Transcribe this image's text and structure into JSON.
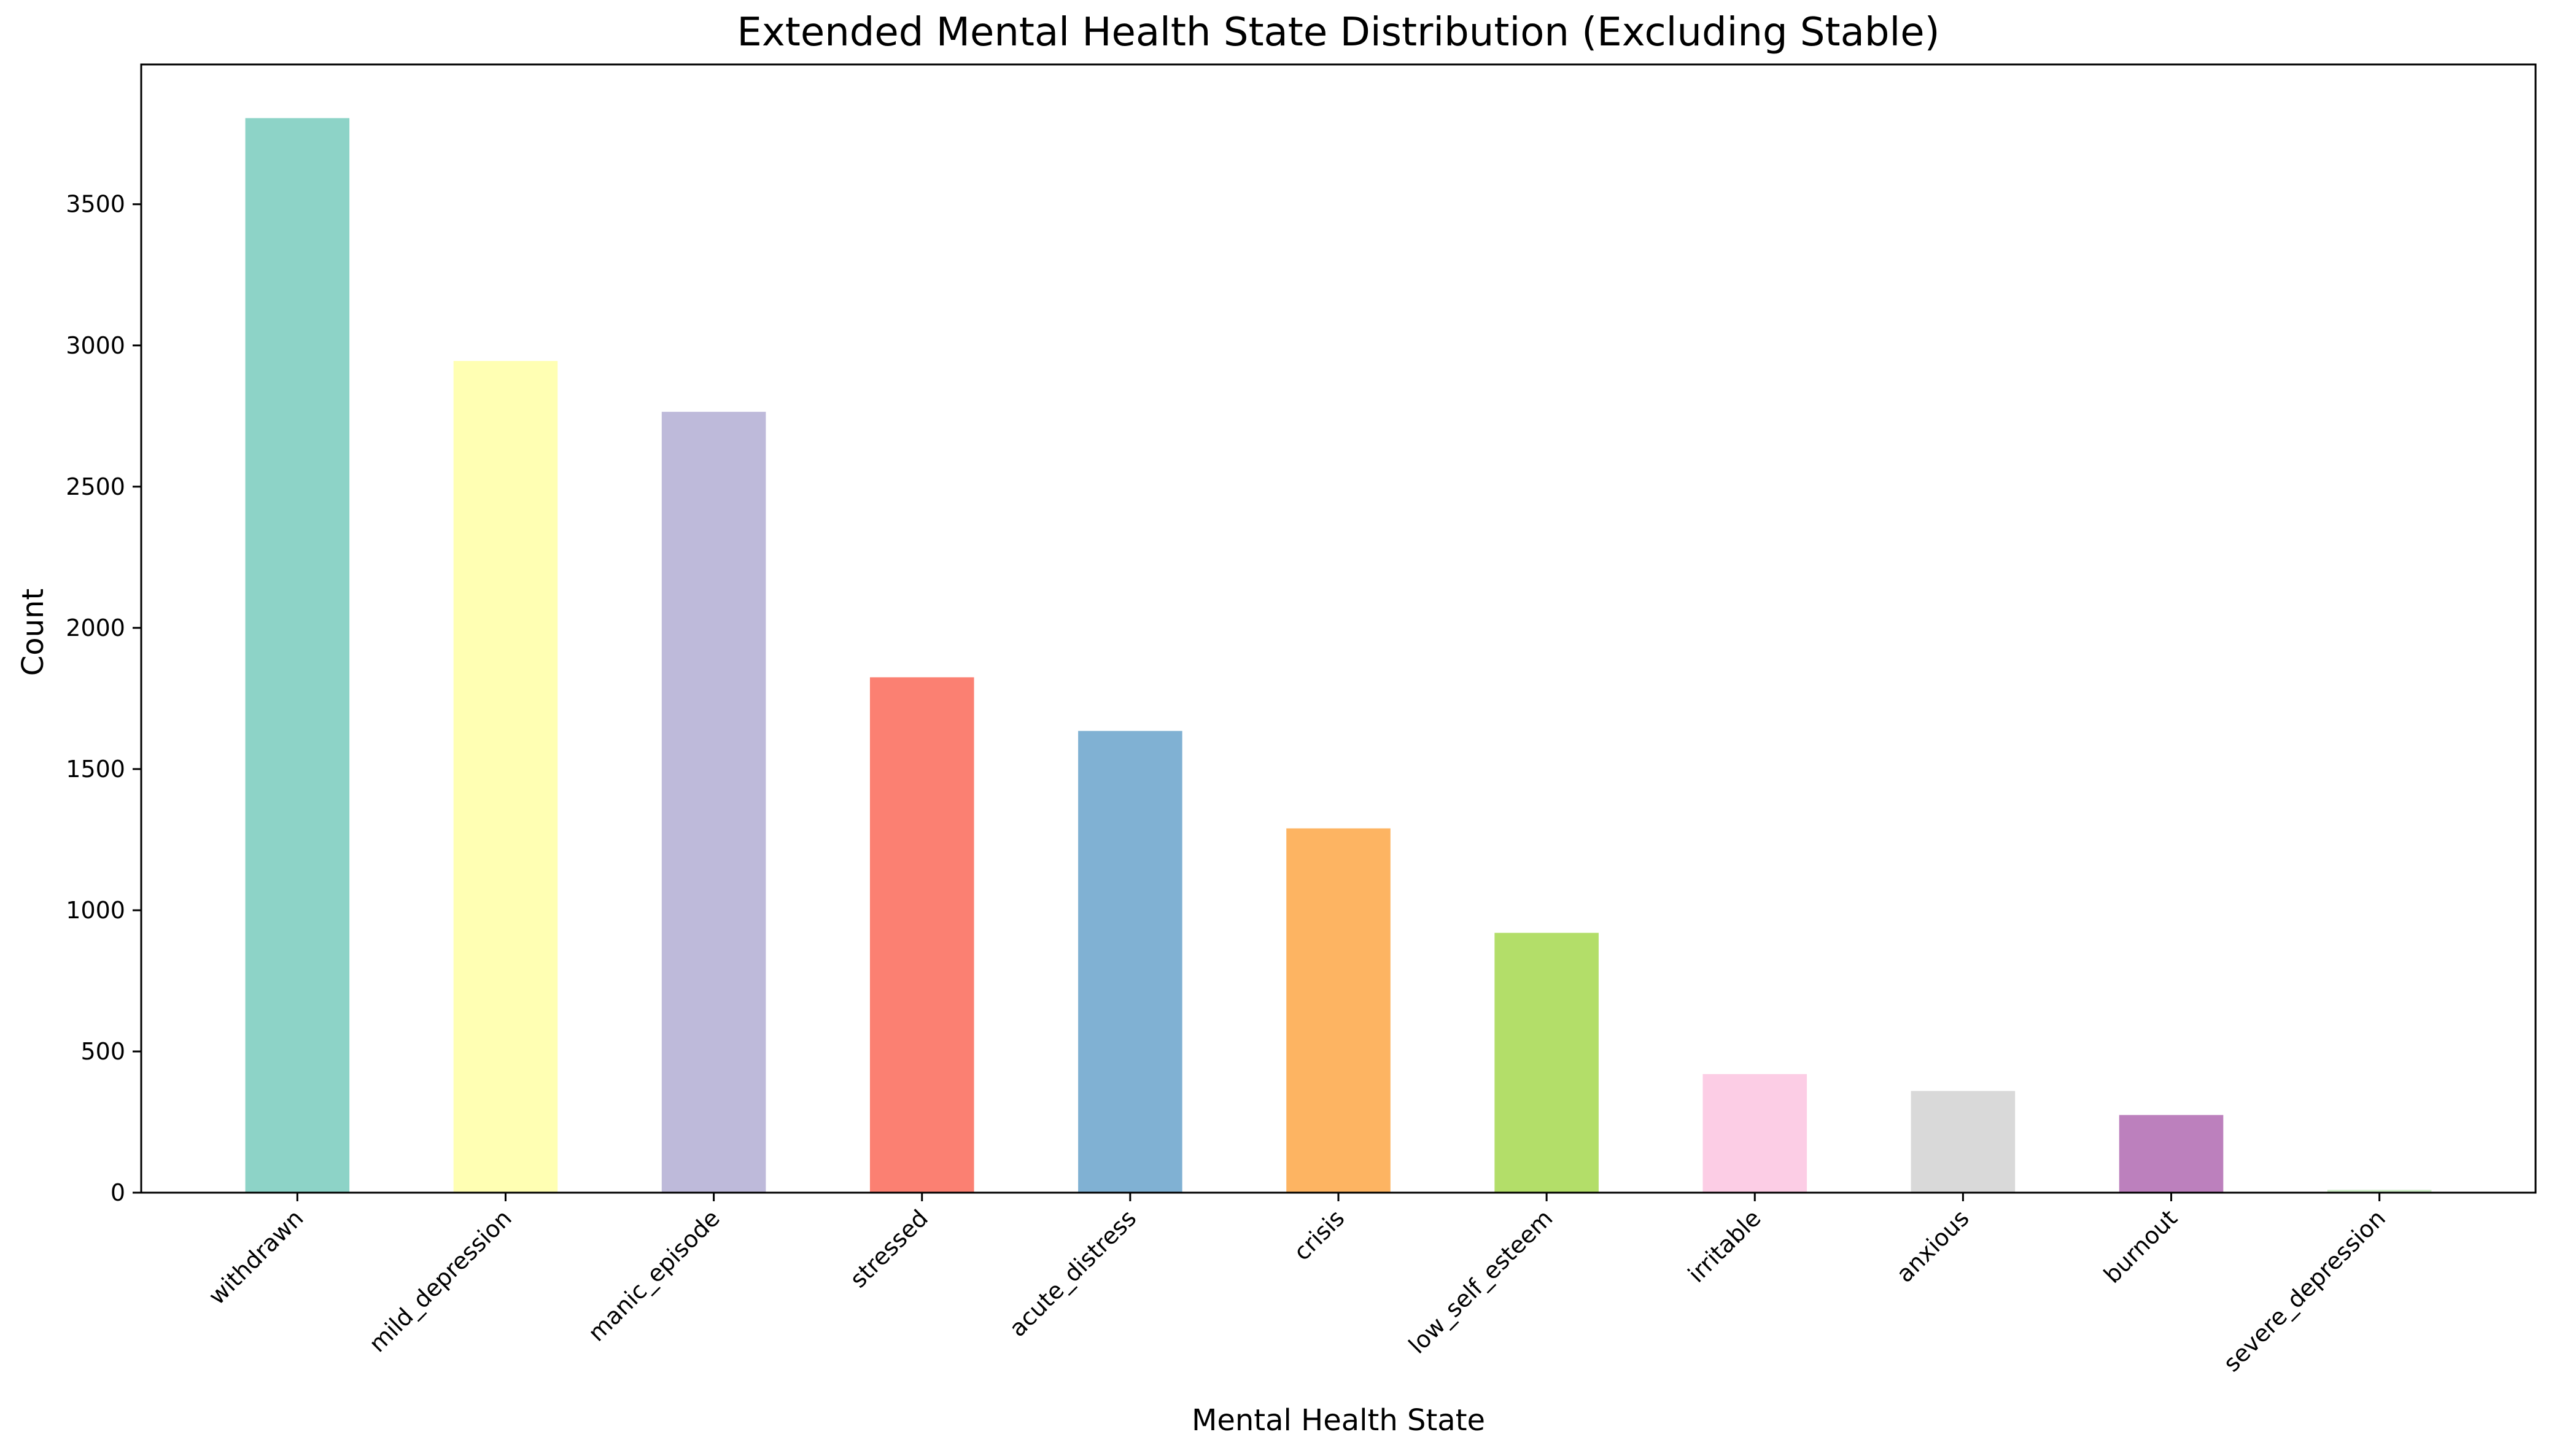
{
  "chart_data": {
    "type": "bar",
    "title": "Extended Mental Health State Distribution (Excluding Stable)",
    "xlabel": "Mental Health State",
    "ylabel": "Count",
    "categories": [
      "withdrawn",
      "mild_depression",
      "manic_episode",
      "stressed",
      "acute_distress",
      "crisis",
      "low_self_esteem",
      "irritable",
      "anxious",
      "burnout",
      "severe_depression"
    ],
    "values": [
      3805,
      2945,
      2765,
      1825,
      1635,
      1290,
      920,
      420,
      360,
      275,
      10
    ],
    "colors": [
      "#8dd3c7",
      "#ffffb3",
      "#bebada",
      "#fb8072",
      "#80b1d3",
      "#fdb462",
      "#b3de69",
      "#fccde5",
      "#d9d9d9",
      "#bc80bd",
      "#ccebc5"
    ],
    "yticks": [
      "0",
      "500",
      "1000",
      "1500",
      "2000",
      "2500",
      "3000",
      "3500"
    ],
    "ylim": [
      0,
      3995
    ],
    "grid": false,
    "legend": "none"
  }
}
